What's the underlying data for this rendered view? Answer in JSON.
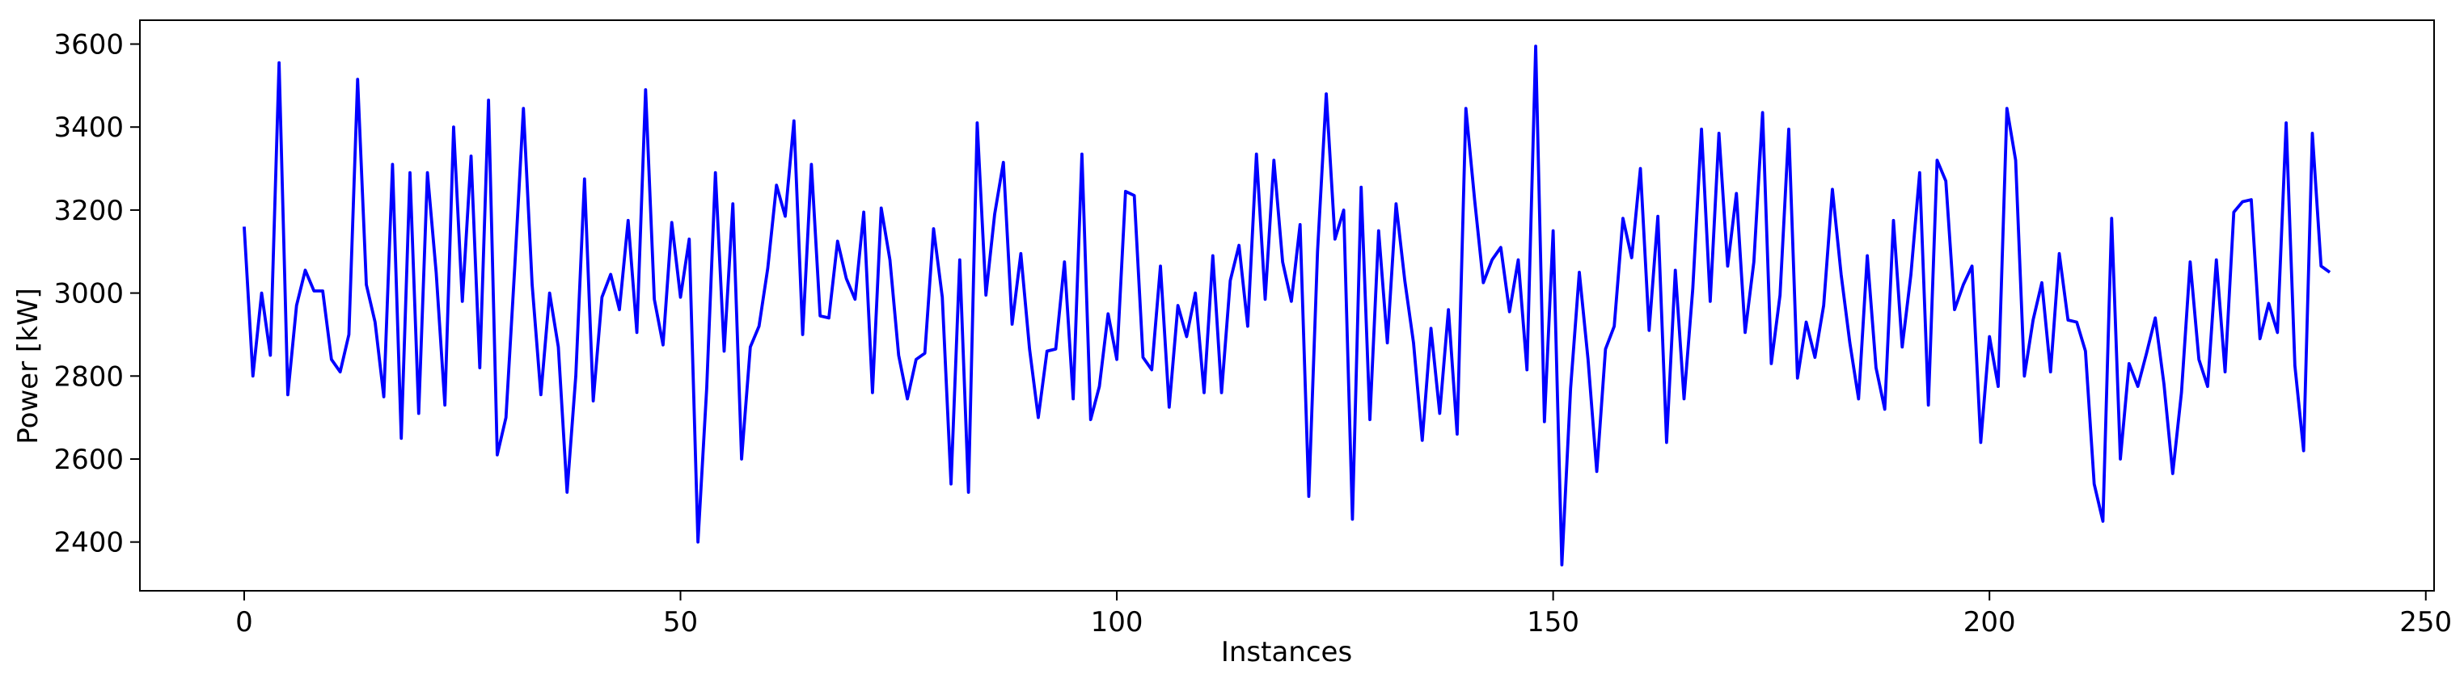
{
  "chart_data": {
    "type": "line",
    "xlabel": "Instances",
    "ylabel": "Power [kW]",
    "x": [
      0,
      1,
      2,
      3,
      4,
      5,
      6,
      7,
      8,
      9,
      10,
      11,
      12,
      13,
      14,
      15,
      16,
      17,
      18,
      19,
      20,
      21,
      22,
      23,
      24,
      25,
      26,
      27,
      28,
      29,
      30,
      31,
      32,
      33,
      34,
      35,
      36,
      37,
      38,
      39,
      40,
      41,
      42,
      43,
      44,
      45,
      46,
      47,
      48,
      49,
      50,
      51,
      52,
      53,
      54,
      55,
      56,
      57,
      58,
      59,
      60,
      61,
      62,
      63,
      64,
      65,
      66,
      67,
      68,
      69,
      70,
      71,
      72,
      73,
      74,
      75,
      76,
      77,
      78,
      79,
      80,
      81,
      82,
      83,
      84,
      85,
      86,
      87,
      88,
      89,
      90,
      91,
      92,
      93,
      94,
      95,
      96,
      97,
      98,
      99,
      100,
      101,
      102,
      103,
      104,
      105,
      106,
      107,
      108,
      109,
      110,
      111,
      112,
      113,
      114,
      115,
      116,
      117,
      118,
      119,
      120,
      121,
      122,
      123,
      124,
      125,
      126,
      127,
      128,
      129,
      130,
      131,
      132,
      133,
      134,
      135,
      136,
      137,
      138,
      139,
      140,
      141,
      142,
      143,
      144,
      145,
      146,
      147,
      148,
      149,
      150,
      151,
      152,
      153,
      154,
      155,
      156,
      157,
      158,
      159,
      160,
      161,
      162,
      163,
      164,
      165,
      166,
      167,
      168,
      169,
      170,
      171,
      172,
      173,
      174,
      175,
      176,
      177,
      178,
      179,
      180,
      181,
      182,
      183,
      184,
      185,
      186,
      187,
      188,
      189,
      190,
      191,
      192,
      193,
      194,
      195,
      196,
      197,
      198,
      199,
      200,
      201,
      202,
      203,
      204,
      205,
      206,
      207,
      208,
      209,
      210,
      211,
      212,
      213,
      214,
      215,
      216,
      217,
      218,
      219,
      220,
      221,
      222,
      223,
      224,
      225,
      226,
      227,
      228,
      229,
      230,
      231,
      232,
      233,
      234,
      235,
      236,
      237,
      238,
      239
    ],
    "series": [
      {
        "color": "#0000ff",
        "values": [
          3160,
          2800,
          3000,
          2850,
          3555,
          2755,
          2970,
          3055,
          3005,
          3005,
          2840,
          2810,
          2900,
          3515,
          3020,
          2930,
          2750,
          3310,
          2650,
          3290,
          2710,
          3290,
          3050,
          2730,
          3400,
          2980,
          3330,
          2820,
          3465,
          2610,
          2700,
          3060,
          3445,
          3020,
          2755,
          3000,
          2870,
          2520,
          2800,
          3275,
          2740,
          2990,
          3045,
          2960,
          3175,
          2905,
          3490,
          2985,
          2875,
          3170,
          2990,
          3130,
          2400,
          2770,
          3290,
          2860,
          3215,
          2600,
          2870,
          2920,
          3060,
          3260,
          3185,
          3415,
          2900,
          3310,
          2945,
          2940,
          3125,
          3035,
          2985,
          3195,
          2760,
          3205,
          3080,
          2850,
          2745,
          2840,
          2855,
          3155,
          2990,
          2540,
          3080,
          2520,
          3410,
          2995,
          3190,
          3315,
          2925,
          3095,
          2865,
          2700,
          2860,
          2865,
          3075,
          2745,
          3335,
          2695,
          2775,
          2950,
          2840,
          3245,
          3235,
          2845,
          2815,
          3065,
          2725,
          2970,
          2895,
          3000,
          2760,
          3090,
          2760,
          3030,
          3115,
          2920,
          3335,
          2985,
          3320,
          3075,
          2980,
          3165,
          2510,
          3100,
          3480,
          3130,
          3200,
          2455,
          3255,
          2695,
          3150,
          2880,
          3215,
          3030,
          2880,
          2645,
          2915,
          2710,
          2960,
          2660,
          3445,
          3225,
          3025,
          3080,
          3110,
          2955,
          3080,
          2815,
          3595,
          2690,
          3150,
          2345,
          2770,
          3050,
          2840,
          2570,
          2865,
          2920,
          3180,
          3085,
          3300,
          2910,
          3185,
          2640,
          3055,
          2745,
          3010,
          3395,
          2980,
          3385,
          3065,
          3240,
          2905,
          3075,
          3435,
          2830,
          2995,
          3395,
          2795,
          2930,
          2845,
          2970,
          3250,
          3045,
          2880,
          2745,
          3090,
          2820,
          2720,
          3175,
          2870,
          3045,
          3290,
          2730,
          3320,
          3270,
          2960,
          3020,
          3065,
          2640,
          2895,
          2775,
          3445,
          3320,
          2800,
          2935,
          3025,
          2810,
          3095,
          2935,
          2930,
          2860,
          2540,
          2450,
          3180,
          2600,
          2830,
          2775,
          2855,
          2940,
          2780,
          2565,
          2760,
          3075,
          2840,
          2775,
          3080,
          2810,
          3195,
          3220,
          3225,
          2890,
          2975,
          2905,
          3410,
          2825,
          2620,
          3385,
          3065,
          3050
        ]
      }
    ],
    "xlim": [
      -11.95,
      250.95
    ],
    "xticks": [
      0,
      50,
      100,
      150,
      200,
      250
    ],
    "ylim": [
      2282.5,
      3657.5
    ],
    "yticks": [
      2400,
      2600,
      2800,
      3000,
      3200,
      3400,
      3600
    ],
    "grid": false
  }
}
